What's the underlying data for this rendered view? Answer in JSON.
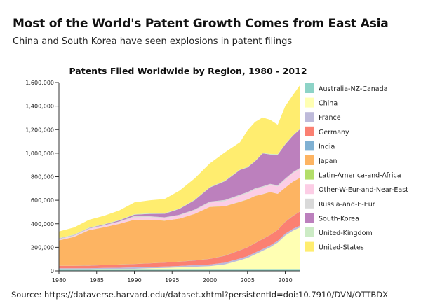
{
  "header": {
    "title": "Most of the World's Patent Growth Comes from East Asia",
    "subtitle": "China and South Korea have seen explosions in patent filings"
  },
  "footer": {
    "source": "Source: https://dataverse.harvard.edu/dataset.xhtml?persistentId=doi:10.7910/DVN/OTTBDX"
  },
  "chart_data": {
    "type": "area",
    "title": "Patents Filed Worldwide by Region, 1980 - 2012",
    "xlabel": "",
    "ylabel": "",
    "stacked": true,
    "x": [
      1980,
      1982,
      1984,
      1986,
      1988,
      1990,
      1992,
      1994,
      1996,
      1998,
      2000,
      2002,
      2004,
      2005,
      2006,
      2007,
      2008,
      2009,
      2010,
      2011,
      2012
    ],
    "xlim": [
      1980,
      2012
    ],
    "x_ticks": [
      "1980",
      "1985",
      "1990",
      "1995",
      "2000",
      "2005",
      "2010"
    ],
    "x_tick_values": [
      1980,
      1985,
      1990,
      1995,
      2000,
      2005,
      2010
    ],
    "ylim": [
      0,
      1600000
    ],
    "y_ticks": [
      "0",
      "200,000",
      "400,000",
      "600,000",
      "800,000",
      "1,000,000",
      "1,200,000",
      "1,400,000",
      "1,600,000"
    ],
    "y_tick_values": [
      0,
      200000,
      400000,
      600000,
      800000,
      1000000,
      1200000,
      1400000,
      1600000
    ],
    "grid": false,
    "legend_position": "right",
    "series": [
      {
        "name": "Australia-NZ-Canada",
        "color": "#8dd3c7",
        "values": [
          10000,
          10000,
          10000,
          10000,
          10000,
          10000,
          10000,
          10000,
          10000,
          10000,
          10000,
          10000,
          10000,
          10000,
          10000,
          10000,
          10000,
          10000,
          10000,
          10000,
          10000
        ]
      },
      {
        "name": "China",
        "color": "#ffffb3",
        "values": [
          0,
          0,
          0,
          3000,
          5000,
          8000,
          12000,
          15000,
          20000,
          25000,
          30000,
          45000,
          80000,
          100000,
          130000,
          160000,
          190000,
          230000,
          290000,
          330000,
          360000
        ]
      },
      {
        "name": "France",
        "color": "#bebada",
        "values": [
          12000,
          12000,
          12000,
          12000,
          12000,
          12000,
          12000,
          12000,
          12000,
          13000,
          14000,
          15000,
          15000,
          15000,
          15000,
          15000,
          16000,
          16000,
          16000,
          16000,
          16000
        ]
      },
      {
        "name": "Germany",
        "color": "#fb8072",
        "values": [
          20000,
          20000,
          22000,
          24000,
          26000,
          28000,
          30000,
          33000,
          36000,
          40000,
          48000,
          58000,
          70000,
          75000,
          80000,
          85000,
          88000,
          92000,
          100000,
          110000,
          120000
        ]
      },
      {
        "name": "India",
        "color": "#80b1d3",
        "values": [
          1000,
          1000,
          1000,
          1000,
          1000,
          1000,
          1000,
          1000,
          1000,
          1000,
          1000,
          1000,
          1000,
          1000,
          1000,
          1000,
          1000,
          1000,
          1000,
          1000,
          1000
        ]
      },
      {
        "name": "Japan",
        "color": "#fdb462",
        "values": [
          215000,
          245000,
          300000,
          320000,
          345000,
          375000,
          370000,
          355000,
          365000,
          395000,
          440000,
          420000,
          410000,
          405000,
          400000,
          380000,
          365000,
          305000,
          290000,
          290000,
          285000
        ]
      },
      {
        "name": "Latin-America-and-Africa",
        "color": "#b3de69",
        "values": [
          1000,
          1000,
          1000,
          1000,
          1000,
          1000,
          1000,
          1000,
          1000,
          1000,
          1000,
          1000,
          1000,
          1000,
          1000,
          1000,
          1000,
          1000,
          1000,
          1000,
          1000
        ]
      },
      {
        "name": "Other-W-Eur-and-Near-East",
        "color": "#fccde5",
        "values": [
          8000,
          8000,
          10000,
          12000,
          15000,
          20000,
          20000,
          22000,
          25000,
          28000,
          35000,
          42000,
          50000,
          52000,
          54000,
          56000,
          58000,
          62000,
          66000,
          70000,
          74000
        ]
      },
      {
        "name": "Russia-and-E-Eur",
        "color": "#d9d9d9",
        "values": [
          5000,
          5000,
          5000,
          5000,
          5000,
          10000,
          8000,
          6000,
          7000,
          8000,
          9000,
          10000,
          10000,
          10000,
          10000,
          10000,
          10000,
          10000,
          10000,
          10000,
          10000
        ]
      },
      {
        "name": "South-Korea",
        "color": "#bc80bd",
        "values": [
          2000,
          2000,
          3000,
          5000,
          8000,
          12000,
          20000,
          30000,
          50000,
          80000,
          120000,
          160000,
          210000,
          210000,
          230000,
          280000,
          250000,
          260000,
          290000,
          310000,
          330000
        ]
      },
      {
        "name": "United-Kingdom",
        "color": "#ccebc5",
        "values": [
          5000,
          5000,
          5000,
          5000,
          5000,
          5000,
          5000,
          5000,
          5000,
          5000,
          5000,
          5000,
          5000,
          5000,
          5000,
          5000,
          5000,
          5000,
          5000,
          5000,
          5000
        ]
      },
      {
        "name": "United-States",
        "color": "#ffed6f",
        "values": [
          56000,
          60000,
          65000,
          70000,
          80000,
          100000,
          110000,
          120000,
          150000,
          180000,
          200000,
          240000,
          230000,
          310000,
          330000,
          300000,
          290000,
          250000,
          320000,
          340000,
          370000
        ]
      }
    ]
  }
}
